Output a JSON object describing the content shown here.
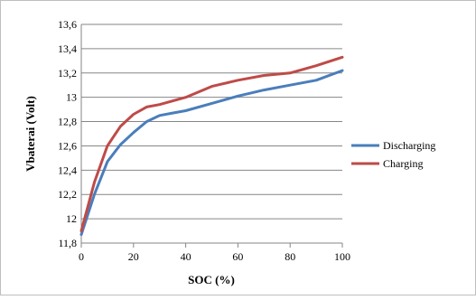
{
  "chart_data": {
    "type": "line",
    "title": "",
    "xlabel": "SOC (%)",
    "ylabel": "Vbaterai (Volt)",
    "xlim": [
      0,
      100
    ],
    "ylim": [
      11.8,
      13.6
    ],
    "x_ticks": [
      0,
      20,
      40,
      60,
      80,
      100
    ],
    "y_ticks": [
      11.8,
      12.0,
      12.2,
      12.4,
      12.6,
      12.8,
      13.0,
      13.2,
      13.4,
      13.6
    ],
    "x_tick_labels": [
      "0",
      "20",
      "40",
      "60",
      "80",
      "100"
    ],
    "y_tick_labels": [
      "11,8",
      "12",
      "12,2",
      "12,4",
      "12,6",
      "12,8",
      "13",
      "13,2",
      "13,4",
      "13,6"
    ],
    "grid": "horizontal",
    "legend_position": "right",
    "series": [
      {
        "name": "Discharging",
        "color": "#4a7ebb",
        "x": [
          0,
          5,
          10,
          15,
          20,
          25,
          30,
          35,
          40,
          50,
          60,
          70,
          80,
          90,
          100
        ],
        "y": [
          11.87,
          12.2,
          12.47,
          12.61,
          12.71,
          12.8,
          12.85,
          12.87,
          12.89,
          12.95,
          13.01,
          13.06,
          13.1,
          13.14,
          13.22
        ]
      },
      {
        "name": "Charging",
        "color": "#be4b48",
        "x": [
          0,
          5,
          10,
          15,
          20,
          25,
          30,
          35,
          40,
          50,
          60,
          70,
          80,
          90,
          100
        ],
        "y": [
          11.9,
          12.3,
          12.6,
          12.76,
          12.86,
          12.92,
          12.94,
          12.97,
          13.0,
          13.09,
          13.14,
          13.18,
          13.2,
          13.26,
          13.33
        ]
      }
    ]
  }
}
